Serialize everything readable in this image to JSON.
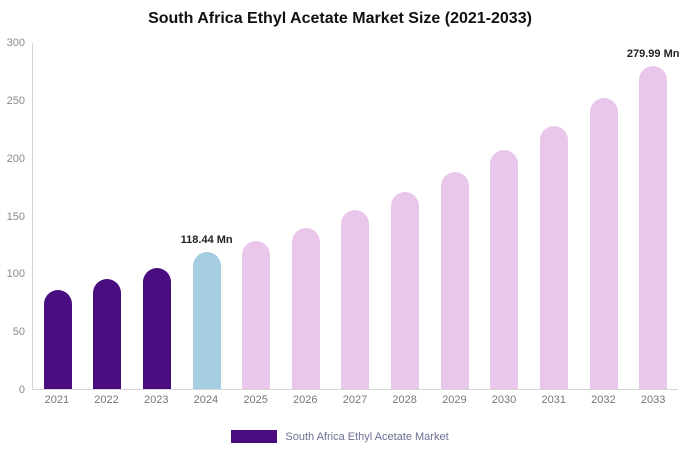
{
  "chart_data": {
    "type": "bar",
    "title": "South Africa Ethyl Acetate Market Size (2021-2033)",
    "categories": [
      "2021",
      "2022",
      "2023",
      "2024",
      "2025",
      "2026",
      "2027",
      "2028",
      "2029",
      "2030",
      "2031",
      "2032",
      "2033"
    ],
    "values": [
      86,
      95,
      105,
      118.44,
      128,
      140,
      155,
      171,
      188,
      207,
      228,
      252,
      279.99
    ],
    "unit": "Mn",
    "ylim": [
      0,
      300
    ],
    "yticks": [
      0,
      50,
      100,
      150,
      200,
      250,
      300
    ],
    "grid": "off",
    "bar_colors": [
      "#490d7f",
      "#490d7f",
      "#490d7f",
      "#a6cee3",
      "#e9c7ea",
      "#e9c7ea",
      "#e9c7ea",
      "#e9c7ea",
      "#e9c7ea",
      "#e9c7ea",
      "#e9c7ea",
      "#e9c7ea",
      "#e9c7ea"
    ],
    "annotations": [
      {
        "index": 3,
        "label": "118.44 Mn"
      },
      {
        "index": 12,
        "label": "279.99 Mn"
      }
    ],
    "legend": {
      "label": "South Africa Ethyl Acetate Market",
      "swatch_color": "#490d7f",
      "position": "bottom"
    }
  }
}
